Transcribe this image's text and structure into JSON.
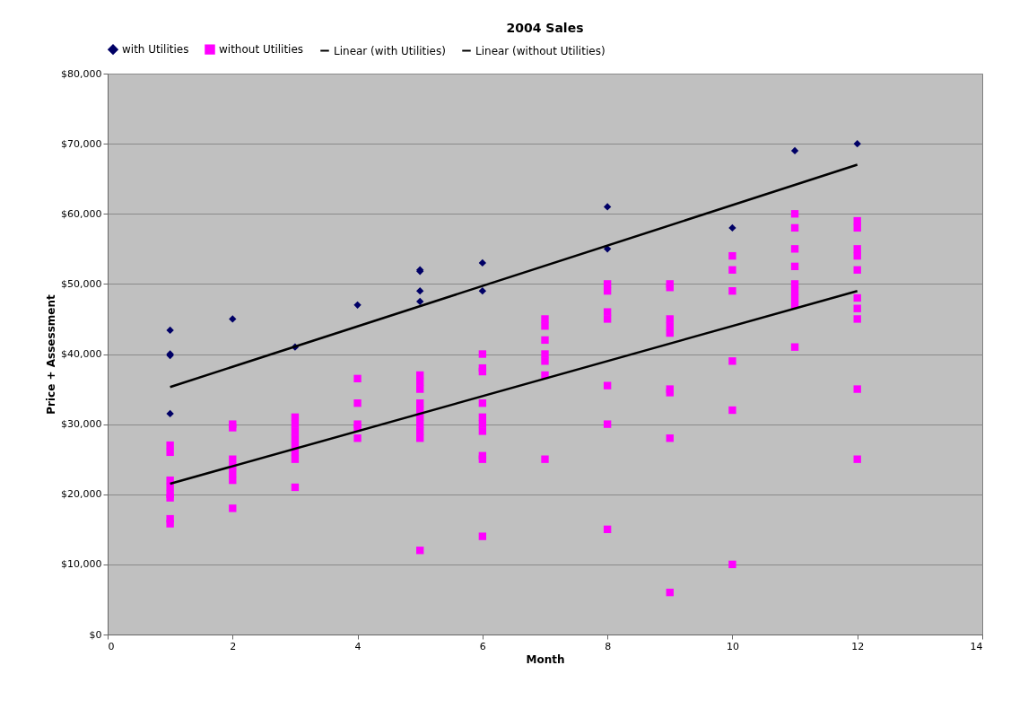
{
  "chart_data": {
    "type": "scatter",
    "title": "2004 Sales",
    "xlabel": "Month",
    "ylabel": "Price + Assessment",
    "xlim": [
      0,
      14
    ],
    "xticks": [
      0,
      2,
      4,
      6,
      8,
      10,
      12,
      14
    ],
    "ylim": [
      0,
      80000
    ],
    "yticks": [
      {
        "value": 0,
        "label": "$0"
      },
      {
        "value": 10000,
        "label": "$10,000"
      },
      {
        "value": 20000,
        "label": "$20,000"
      },
      {
        "value": 30000,
        "label": "$30,000"
      },
      {
        "value": 40000,
        "label": "$40,000"
      },
      {
        "value": 50000,
        "label": "$50,000"
      },
      {
        "value": 60000,
        "label": "$60,000"
      },
      {
        "value": 70000,
        "label": "$70,000"
      },
      {
        "value": 80000,
        "label": "$80,000"
      }
    ],
    "grid": "y",
    "legend": "top",
    "series": [
      {
        "name": "with Utilities",
        "type": "scatter",
        "marker": "diamond",
        "color": "#000066",
        "x": [
          1,
          1,
          1,
          1,
          2,
          3,
          4,
          5,
          5,
          5,
          5,
          6,
          6,
          8,
          8,
          10,
          11,
          12
        ],
        "values": [
          43400,
          40000,
          39800,
          31500,
          45000,
          41000,
          47000,
          52000,
          51800,
          49000,
          47500,
          53000,
          49000,
          61000,
          55000,
          58000,
          69000,
          70000
        ]
      },
      {
        "name": "without Utilities",
        "type": "scatter",
        "marker": "square",
        "color": "#ff00ff",
        "x": [
          1,
          1,
          1,
          1,
          1,
          1,
          1,
          1,
          2,
          2,
          2,
          2,
          2,
          2,
          2,
          3,
          3,
          3,
          3,
          3,
          3,
          3,
          3,
          4,
          4,
          4,
          4,
          4,
          5,
          5,
          5,
          5,
          5,
          5,
          5,
          5,
          5,
          5,
          6,
          6,
          6,
          6,
          6,
          6,
          6,
          6,
          6,
          6,
          7,
          7,
          7,
          7,
          7,
          7,
          7,
          8,
          8,
          8,
          8,
          8,
          8,
          8,
          9,
          9,
          9,
          9,
          9,
          9,
          9,
          9,
          9,
          10,
          10,
          10,
          10,
          10,
          10,
          11,
          11,
          11,
          11,
          11,
          11,
          11,
          11,
          11,
          12,
          12,
          12,
          12,
          12,
          12,
          12,
          12,
          12,
          12
        ],
        "values": [
          27000,
          26000,
          22000,
          21000,
          20000,
          19500,
          16500,
          15800,
          30000,
          29500,
          25000,
          24000,
          23000,
          22000,
          18000,
          31000,
          30000,
          29000,
          28000,
          27000,
          26000,
          25000,
          21000,
          36500,
          33000,
          30000,
          29500,
          28000,
          37000,
          36000,
          35000,
          33000,
          32000,
          31000,
          30000,
          29000,
          28000,
          12000,
          40000,
          38000,
          37500,
          33000,
          31000,
          30000,
          29000,
          25500,
          25000,
          14000,
          45000,
          44000,
          42000,
          40000,
          39000,
          37000,
          25000,
          50000,
          49000,
          46000,
          45000,
          35500,
          30000,
          15000,
          50000,
          49500,
          45000,
          44000,
          43000,
          35000,
          34500,
          28000,
          6000,
          54000,
          52000,
          49000,
          39000,
          32000,
          10000,
          60000,
          58000,
          55000,
          52500,
          50000,
          49000,
          48000,
          47000,
          41000,
          59000,
          58000,
          55000,
          54000,
          52000,
          48000,
          46500,
          45000,
          35000,
          25000
        ]
      },
      {
        "name": "Linear (with Utilities)",
        "type": "line",
        "line_style": "solid",
        "color": "#000000",
        "x": [
          1,
          12
        ],
        "values": [
          35300,
          67000
        ]
      },
      {
        "name": "Linear (without Utilities)",
        "type": "line",
        "line_style": "solid",
        "color": "#000000",
        "x": [
          1,
          12
        ],
        "values": [
          21500,
          49000
        ]
      }
    ]
  }
}
